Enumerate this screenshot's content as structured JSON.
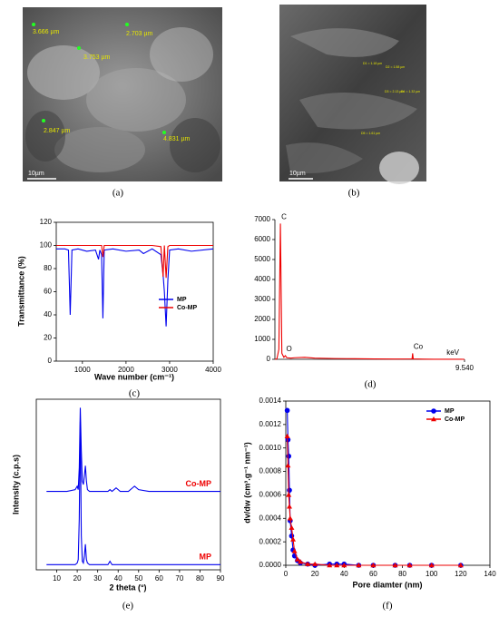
{
  "images": [
    {
      "panel": "(a)",
      "scale_bar": "10µm",
      "measurements": [
        "3.666 µm",
        "2.703 µm",
        "3.753 µm",
        "2.847 µm",
        "4.831 µm"
      ]
    },
    {
      "panel": "(b)",
      "scale_bar": "10µm",
      "measurements": [
        "D1 = 1.18 µm",
        "D2 = 1.58 µm",
        "D3 = 2.13 µm",
        "D4 = 1.32 µm",
        "D5 = 1.61 µm"
      ]
    }
  ],
  "chart_data": [
    {
      "type": "line",
      "panel": "(c)",
      "xlabel": "Wave number (cm⁻¹)",
      "ylabel": "Transmittance (%)",
      "x": [
        400,
        600,
        680,
        720,
        760,
        900,
        1100,
        1300,
        1370,
        1400,
        1440,
        1470,
        1500,
        1700,
        2000,
        2300,
        2400,
        2600,
        2800,
        2850,
        2880,
        2920,
        2960,
        3000,
        3200,
        3500,
        4000
      ],
      "series": [
        {
          "name": "MP",
          "color": "#0000ee",
          "values": [
            97,
            97,
            96,
            40,
            96,
            97,
            95,
            96,
            88,
            96,
            92,
            37,
            96,
            97,
            95,
            96,
            93,
            97,
            92,
            75,
            60,
            30,
            70,
            96,
            97,
            95,
            97
          ]
        },
        {
          "name": "Co-MP",
          "color": "#ee0000",
          "values": [
            100,
            100,
            100,
            100,
            100,
            100,
            100,
            100,
            100,
            100,
            100,
            90,
            100,
            100,
            100,
            100,
            100,
            100,
            99,
            73,
            100,
            72,
            99,
            100,
            100,
            100,
            100
          ]
        }
      ],
      "xlim": [
        400,
        4000
      ],
      "xticks": [
        1000,
        2000,
        3000,
        4000
      ],
      "ylim": [
        0,
        120
      ],
      "yticks": [
        0,
        20,
        40,
        60,
        80,
        100,
        120
      ],
      "legend": "lower right"
    },
    {
      "type": "line",
      "panel": "(d)",
      "xlabel": "keV",
      "x": [
        0,
        0.1,
        0.2,
        0.277,
        0.35,
        0.45,
        0.525,
        0.6,
        0.8,
        1,
        1.5,
        2,
        3,
        4,
        5,
        6,
        6.9,
        6.93,
        6.96,
        7.5,
        8,
        9,
        9.54
      ],
      "series": [
        {
          "name": "C",
          "color": "#ee0000",
          "values": [
            0,
            20,
            500,
            6800,
            300,
            100,
            180,
            80,
            60,
            80,
            100,
            60,
            40,
            30,
            20,
            15,
            20,
            300,
            20,
            10,
            5,
            5,
            0
          ]
        }
      ],
      "annotations": [
        {
          "text": "C",
          "x": 0.277,
          "y": 6800
        },
        {
          "text": "O",
          "x": 0.525,
          "y": 180
        },
        {
          "text": "Co",
          "x": 6.93,
          "y": 300
        }
      ],
      "xlim": [
        0,
        9.54
      ],
      "xticks": [
        {
          "value": 9.54,
          "label": "9.540"
        }
      ],
      "ylim": [
        0,
        7000
      ],
      "yticks": [
        0,
        1000,
        2000,
        3000,
        4000,
        5000,
        6000,
        7000
      ]
    },
    {
      "type": "line",
      "panel": "(e)",
      "xlabel": "2 theta (°)",
      "ylabel": "Intensity (c.p.s)",
      "x": [
        5,
        10,
        15,
        19,
        20,
        20.5,
        21,
        21.5,
        22,
        22.5,
        23,
        23.5,
        24,
        24.5,
        25,
        26,
        30,
        35,
        36,
        37,
        39,
        40,
        41,
        45,
        47,
        48,
        50,
        55,
        60,
        70,
        80,
        90
      ],
      "series": [
        {
          "name": "Co-MP",
          "color": "#0000ee",
          "label_color": "#ee0000",
          "values": [
            46,
            46,
            46,
            47,
            49,
            47,
            60,
            95,
            70,
            52,
            50,
            55,
            61,
            52,
            47,
            46,
            46,
            46,
            47,
            46,
            48,
            47,
            46,
            46,
            48,
            49,
            47,
            46,
            46,
            46,
            46,
            46
          ]
        },
        {
          "name": "MP",
          "color": "#0000ee",
          "label_color": "#ee0000",
          "values": [
            3,
            3,
            3,
            3,
            4,
            6,
            30,
            87,
            20,
            5,
            4,
            8,
            15,
            6,
            4,
            3,
            3,
            3,
            5,
            3,
            3,
            3,
            3,
            3,
            3,
            3,
            3,
            3,
            3,
            3,
            3,
            3
          ]
        }
      ],
      "xlim": [
        0,
        90
      ],
      "xticks": [
        10,
        20,
        30,
        40,
        50,
        60,
        70,
        80,
        90
      ],
      "ylim": [
        0,
        100
      ],
      "legend": "inline"
    },
    {
      "type": "line",
      "panel": "(f)",
      "xlabel": "Pore diamter (nm)",
      "ylabel": "dv/dw (cm³.g⁻¹ nm⁻¹)",
      "x": [
        1,
        1.5,
        2,
        2.5,
        3,
        4,
        5,
        6,
        8,
        10,
        15,
        20,
        30,
        35,
        40,
        50,
        60,
        75,
        85,
        100,
        120
      ],
      "series": [
        {
          "name": "MP",
          "color": "#0000ee",
          "marker": "circle",
          "values": [
            0.00132,
            0.00107,
            0.00093,
            0.00064,
            0.00038,
            0.00025,
            0.00013,
            8e-05,
            4e-05,
            2e-05,
            1e-05,
            0,
            1e-05,
            1e-05,
            1e-05,
            0,
            0,
            0,
            0,
            0,
            0
          ]
        },
        {
          "name": "Co-MP",
          "color": "#ee0000",
          "marker": "triangle",
          "values": [
            0.0011,
            0.00085,
            0.0006,
            0.0005,
            0.0004,
            0.00032,
            0.00022,
            0.00012,
            5e-05,
            3e-05,
            1e-05,
            1e-05,
            0,
            0,
            0,
            0,
            0,
            0,
            0,
            0,
            0
          ]
        }
      ],
      "xlim": [
        0,
        140
      ],
      "xticks": [
        0,
        20,
        40,
        60,
        80,
        100,
        120,
        140
      ],
      "ylim": [
        0,
        0.0014
      ],
      "yticks": [
        {
          "value": 0,
          "label": "0.0000"
        },
        0.0002,
        0.0004,
        0.0006,
        0.0008,
        {
          "value": 0.001,
          "label": "0.0010"
        },
        0.0012,
        0.0014
      ],
      "legend": "upper right"
    }
  ]
}
